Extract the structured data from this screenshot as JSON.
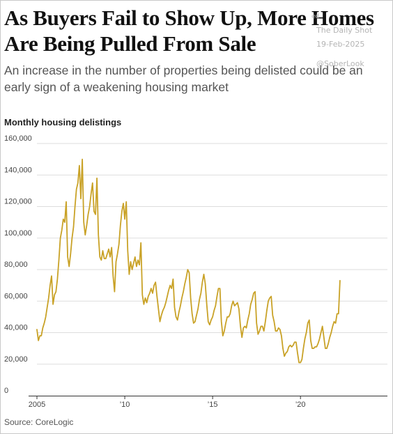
{
  "header": {
    "title": "As Buyers Fail to Show Up, More Homes Are Being Pulled From Sale",
    "subtitle": "An increase in the number of properties being delisted could be an early sign of a weakening housing market"
  },
  "watermark": {
    "line0": "ed",
    "line1": "The Daily Shot",
    "line2": "19-Feb-2025",
    "line3": "@SoberLook"
  },
  "source": "Source: CoreLogic",
  "colors": {
    "line": "#c9a227",
    "grid": "#dddddd",
    "axis": "#333333"
  },
  "chart_data": {
    "type": "line",
    "title": "Monthly housing delistings",
    "xlabel": "",
    "ylabel": "",
    "xlim": [
      2005,
      2024.95
    ],
    "ylim": [
      0,
      160000
    ],
    "x_ticks": [
      2005,
      2010,
      2015,
      2020
    ],
    "x_tick_labels": [
      "2005",
      "’10",
      "’15",
      "’20"
    ],
    "y_ticks": [
      0,
      20000,
      40000,
      60000,
      80000,
      100000,
      120000,
      140000,
      160000
    ],
    "y_tick_labels": [
      "0",
      "20,000",
      "40,000",
      "60,000",
      "80,000",
      "100,000",
      "120,000",
      "140,000",
      "160,000"
    ],
    "grid": true,
    "series": [
      {
        "start": "2005-01",
        "frequency": "monthly",
        "values": [
          42000,
          35000,
          38000,
          38000,
          43000,
          46000,
          50000,
          56000,
          62000,
          70000,
          76000,
          58000,
          64000,
          66000,
          74000,
          86000,
          100000,
          105000,
          112000,
          110000,
          123000,
          88000,
          82000,
          90000,
          100000,
          107000,
          120000,
          131000,
          135000,
          146000,
          125000,
          150000,
          110000,
          102000,
          108000,
          115000,
          120000,
          128000,
          135000,
          117000,
          115000,
          138000,
          102000,
          88000,
          86000,
          92000,
          87000,
          87000,
          90000,
          93000,
          88000,
          94000,
          76000,
          66000,
          85000,
          90000,
          96000,
          108000,
          117000,
          122000,
          112000,
          123000,
          92000,
          77000,
          85000,
          80000,
          84000,
          88000,
          82000,
          86000,
          83000,
          97000,
          64000,
          58000,
          62000,
          59000,
          63000,
          65000,
          68000,
          65000,
          70000,
          72000,
          63000,
          55000,
          47000,
          51000,
          54000,
          56000,
          59000,
          63000,
          67000,
          70000,
          68000,
          74000,
          56000,
          50000,
          48000,
          53000,
          57000,
          62000,
          66000,
          71000,
          75000,
          80000,
          78000,
          62000,
          52000,
          46000,
          47000,
          51000,
          55000,
          61000,
          65000,
          72000,
          77000,
          71000,
          58000,
          47000,
          45000,
          48000,
          50000,
          54000,
          57000,
          63000,
          68000,
          68000,
          47000,
          38000,
          41000,
          46000,
          50000,
          50000,
          52000,
          57000,
          60000,
          57000,
          58000,
          59000,
          55000,
          44000,
          37000,
          43000,
          44000,
          43000,
          48000,
          52000,
          58000,
          61000,
          65000,
          66000,
          46000,
          39000,
          41000,
          44000,
          44000,
          41000,
          47000,
          54000,
          60000,
          62000,
          63000,
          51000,
          47000,
          41000,
          41000,
          43000,
          42000,
          38000,
          30000,
          25000,
          27000,
          28000,
          31000,
          32000,
          31000,
          32000,
          34000,
          34000,
          27000,
          21000,
          21000,
          23000,
          30000,
          36000,
          40000,
          46000,
          48000,
          35000,
          30000,
          30000,
          31000,
          31000,
          33000,
          36000,
          40000,
          44000,
          37000,
          30000,
          30000,
          33000,
          37000,
          40000,
          44000,
          47000,
          46000,
          52000,
          52000,
          73000
        ]
      }
    ]
  }
}
